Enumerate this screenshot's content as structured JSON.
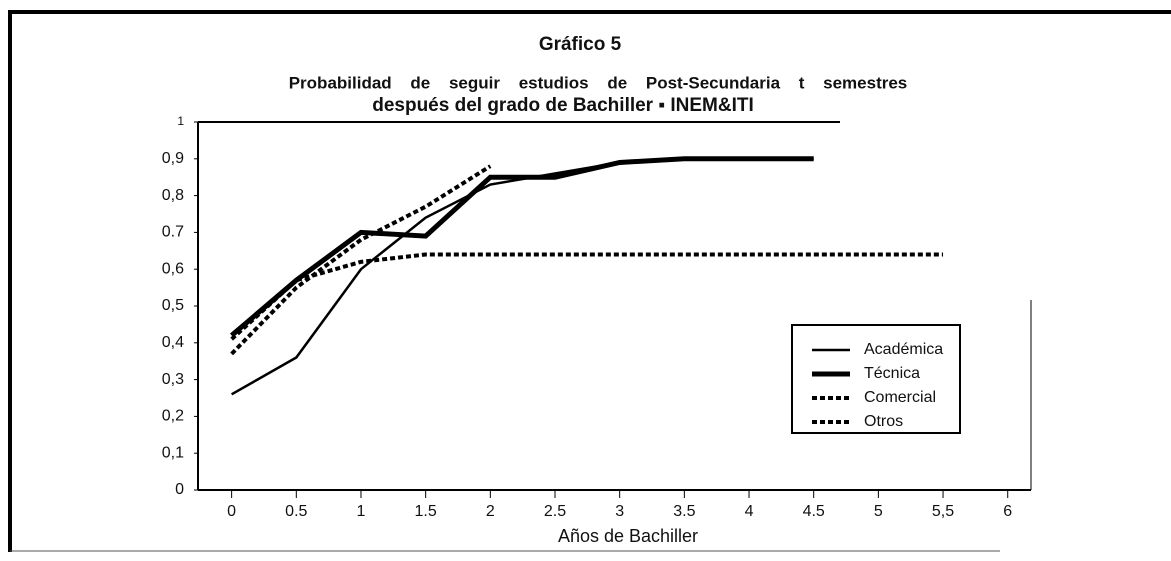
{
  "chart_data": {
    "type": "line",
    "title": "Gráfico 5",
    "subtitle": "Probabilidad de seguir estudios de Post-Secundaria t semestres",
    "subtitle2": "después del grado de Bachiller ▪ INEM&ITI",
    "x_label": "Años de Bachiller",
    "x": [
      0,
      0.5,
      1,
      1.5,
      2,
      2.5,
      3,
      3.5,
      4,
      4.5,
      5,
      5.5
    ],
    "series": [
      {
        "name": "Académica",
        "color": "#000000",
        "line_width": 2.5,
        "dash": false,
        "values": [
          0.26,
          0.36,
          0.6,
          0.74,
          0.83,
          0.86,
          0.89,
          0.9,
          0.9,
          0.9,
          null,
          null
        ]
      },
      {
        "name": "Técnica",
        "color": "#000000",
        "line_width": 5,
        "dash": false,
        "values": [
          0.42,
          0.57,
          0.7,
          0.69,
          0.85,
          0.85,
          0.89,
          0.9,
          0.9,
          0.9,
          null,
          null
        ]
      },
      {
        "name": "Comercial",
        "color": "#000000",
        "line_width": 4,
        "dash": true,
        "values": [
          0.37,
          0.55,
          0.68,
          0.77,
          0.88,
          null,
          null,
          null,
          null,
          null,
          null,
          null
        ]
      },
      {
        "name": "Otros",
        "color": "#000000",
        "line_width": 4,
        "dash": true,
        "values": [
          0.41,
          0.57,
          0.62,
          0.64,
          0.64,
          0.64,
          0.64,
          0.64,
          0.64,
          0.64,
          0.64,
          0.64
        ]
      }
    ],
    "xlim": [
      -0.26,
      6.18
    ],
    "xticks": [
      0,
      0.5,
      1,
      1.5,
      2,
      2.5,
      3,
      3.5,
      4,
      4.5,
      5,
      {
        "value": 5.5,
        "label": "5,5"
      },
      6
    ],
    "ylim": [
      0,
      1
    ],
    "yticks": [
      0,
      {
        "value": 0.1,
        "label": "0,1"
      },
      {
        "value": 0.2,
        "label": "0,2"
      },
      {
        "value": 0.3,
        "label": "0,3"
      },
      {
        "value": 0.4,
        "label": "0,4"
      },
      {
        "value": 0.5,
        "label": "0,5"
      },
      {
        "value": 0.6,
        "label": "0,6"
      },
      0.7,
      {
        "value": 0.8,
        "label": "0,8"
      },
      {
        "value": 0.9,
        "label": "0,9"
      },
      1
    ],
    "legend": "right"
  }
}
